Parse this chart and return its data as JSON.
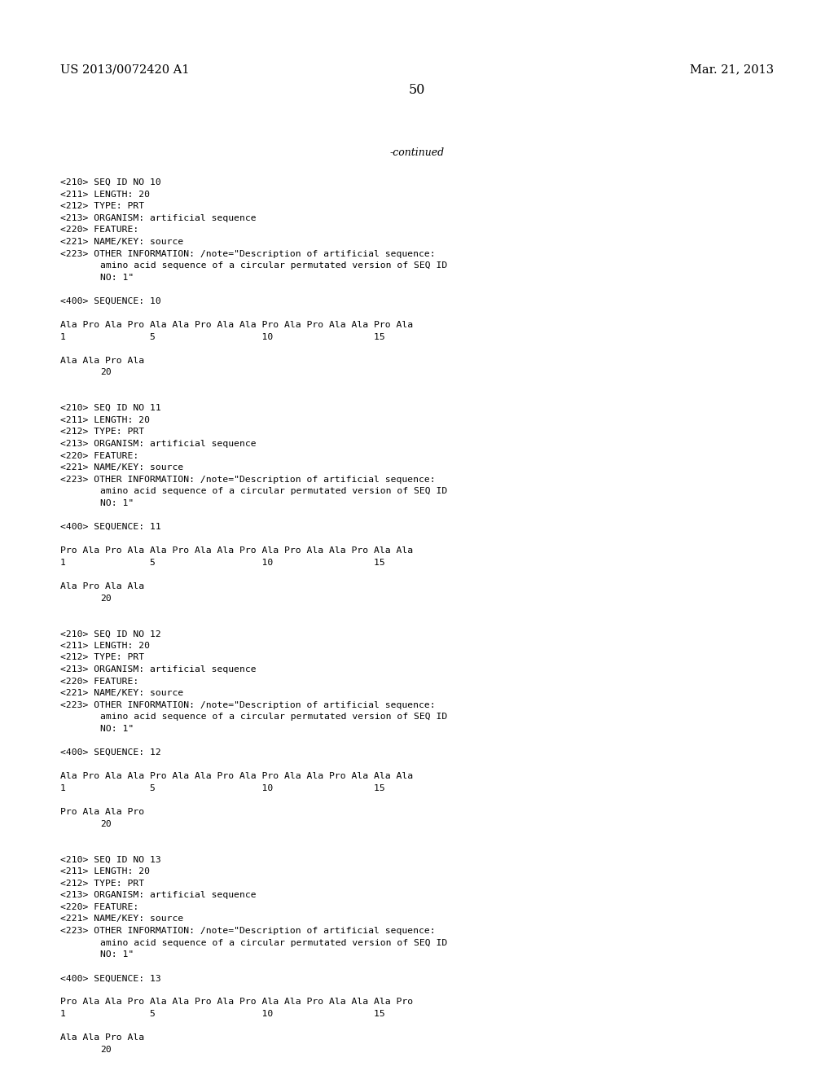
{
  "background_color": "#ffffff",
  "header_left": "US 2013/0072420 A1",
  "header_right": "Mar. 21, 2013",
  "page_number": "50",
  "continued_text": "-continued",
  "line_color": "#000000",
  "text_color": "#000000",
  "font_size_header": 10.5,
  "font_size_page": 11.5,
  "font_size_continued": 9.0,
  "font_size_content": 8.2,
  "content_lines": [
    "<210> SEQ ID NO 10",
    "<211> LENGTH: 20",
    "<212> TYPE: PRT",
    "<213> ORGANISM: artificial sequence",
    "<220> FEATURE:",
    "<221> NAME/KEY: source",
    "<223> OTHER INFORMATION: /note=\"Description of artificial sequence:",
    "      amino acid sequence of a circular permutated version of SEQ ID",
    "      NO: 1\"",
    "",
    "<400> SEQUENCE: 10",
    "",
    "Ala Pro Ala Pro Ala Ala Pro Ala Ala Pro Ala Pro Ala Ala Pro Ala",
    "1               5                   10                  15",
    "",
    "Ala Ala Pro Ala",
    "            20",
    "",
    "",
    "<210> SEQ ID NO 11",
    "<211> LENGTH: 20",
    "<212> TYPE: PRT",
    "<213> ORGANISM: artificial sequence",
    "<220> FEATURE:",
    "<221> NAME/KEY: source",
    "<223> OTHER INFORMATION: /note=\"Description of artificial sequence:",
    "      amino acid sequence of a circular permutated version of SEQ ID",
    "      NO: 1\"",
    "",
    "<400> SEQUENCE: 11",
    "",
    "Pro Ala Pro Ala Ala Pro Ala Ala Pro Ala Pro Ala Ala Pro Ala Ala",
    "1               5                   10                  15",
    "",
    "Ala Pro Ala Ala",
    "            20",
    "",
    "",
    "<210> SEQ ID NO 12",
    "<211> LENGTH: 20",
    "<212> TYPE: PRT",
    "<213> ORGANISM: artificial sequence",
    "<220> FEATURE:",
    "<221> NAME/KEY: source",
    "<223> OTHER INFORMATION: /note=\"Description of artificial sequence:",
    "      amino acid sequence of a circular permutated version of SEQ ID",
    "      NO: 1\"",
    "",
    "<400> SEQUENCE: 12",
    "",
    "Ala Pro Ala Ala Pro Ala Ala Pro Ala Pro Ala Ala Pro Ala Ala Ala",
    "1               5                   10                  15",
    "",
    "Pro Ala Ala Pro",
    "            20",
    "",
    "",
    "<210> SEQ ID NO 13",
    "<211> LENGTH: 20",
    "<212> TYPE: PRT",
    "<213> ORGANISM: artificial sequence",
    "<220> FEATURE:",
    "<221> NAME/KEY: source",
    "<223> OTHER INFORMATION: /note=\"Description of artificial sequence:",
    "      amino acid sequence of a circular permutated version of SEQ ID",
    "      NO: 1\"",
    "",
    "<400> SEQUENCE: 13",
    "",
    "Pro Ala Ala Pro Ala Ala Pro Ala Pro Ala Ala Pro Ala Ala Ala Pro",
    "1               5                   10                  15",
    "",
    "Ala Ala Pro Ala",
    "            20"
  ]
}
